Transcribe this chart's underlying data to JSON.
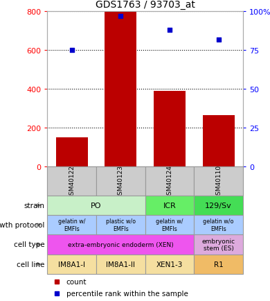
{
  "title": "GDS1763 / 93703_at",
  "samples": [
    "GSM40122",
    "GSM40123",
    "GSM40124",
    "GSM40110"
  ],
  "bar_values": [
    150,
    800,
    390,
    265
  ],
  "scatter_values": [
    75,
    97,
    88,
    82
  ],
  "bar_color": "#bb0000",
  "scatter_color": "#0000cc",
  "ylim_left": [
    0,
    800
  ],
  "ylim_right": [
    0,
    100
  ],
  "yticks_left": [
    0,
    200,
    400,
    600,
    800
  ],
  "yticks_right": [
    0,
    25,
    50,
    75,
    100
  ],
  "ytick_labels_right": [
    "0",
    "25",
    "50",
    "75",
    "100%"
  ],
  "row_labels": [
    "strain",
    "growth protocol",
    "cell type",
    "cell line"
  ],
  "strain_spans": [
    [
      0,
      1,
      "PO"
    ],
    [
      2,
      2,
      "ICR"
    ],
    [
      3,
      3,
      "129/Sv"
    ]
  ],
  "strain_colors": [
    "#c8f0c8",
    "#c8f0c8",
    "#66ee66",
    "#44dd55"
  ],
  "growth_data": [
    "gelatin w/\nEMFls",
    "plastic w/o\nEMFls",
    "gelatin w/\nEMFls",
    "gelatin w/o\nEMFls"
  ],
  "growth_color": "#aaccff",
  "cell_type_spans": [
    [
      0,
      2,
      "extra-embryonic endoderm (XEN)"
    ],
    [
      3,
      3,
      "embryonic\nstem (ES)"
    ]
  ],
  "cell_type_colors": [
    "#ee55ee",
    "#ddaadd"
  ],
  "cell_line_data": [
    "IM8A1-I",
    "IM8A1-II",
    "XEN1-3",
    "R1"
  ],
  "cell_line_colors": [
    "#f5dfa0",
    "#f5dfa0",
    "#f5dfa0",
    "#f0bb66"
  ],
  "sample_bg_color": "#cccccc",
  "border_color": "#999999"
}
